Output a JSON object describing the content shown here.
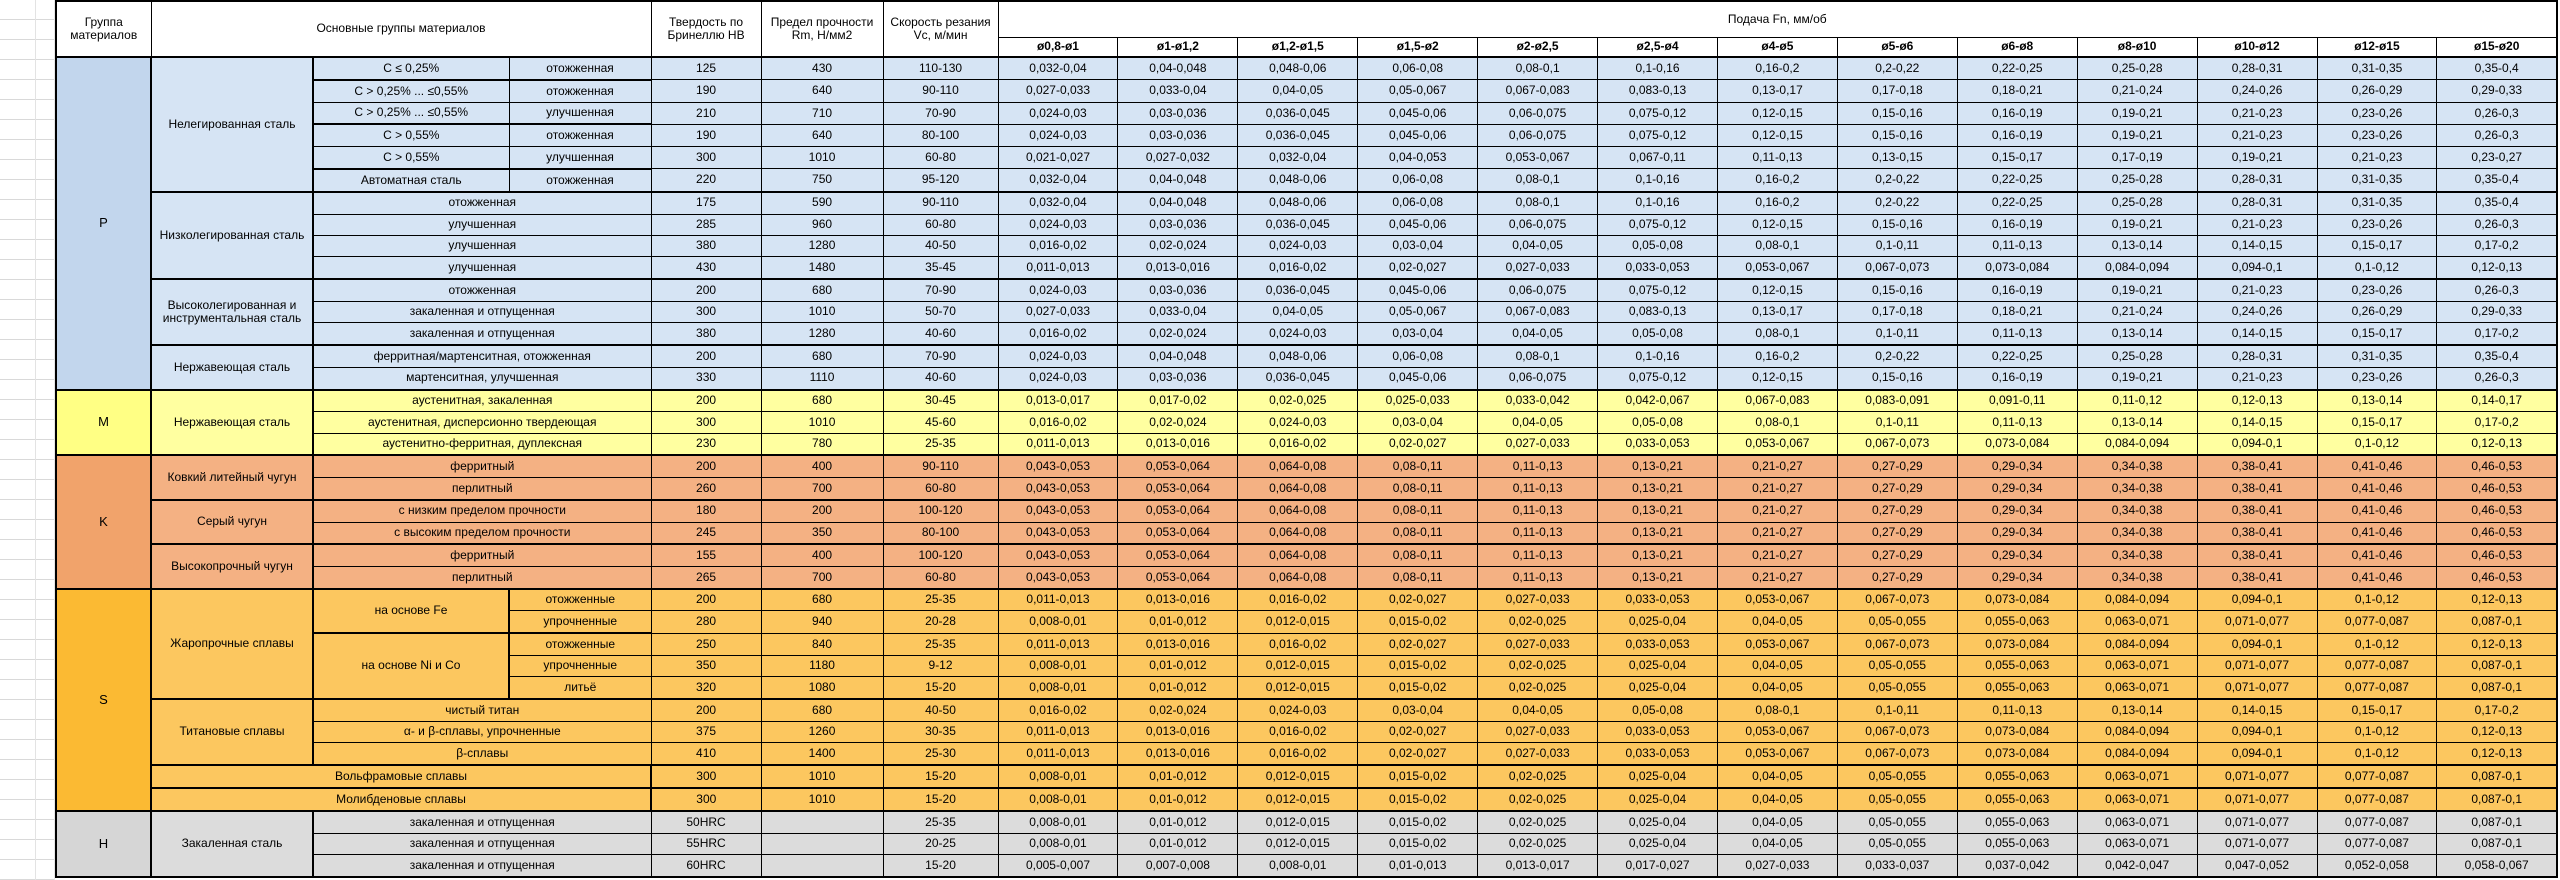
{
  "header": {
    "col_group": "Группа материалов",
    "col_main": "Основные группы материалов",
    "col_hardness": "Твердость по Бринеллю HB",
    "col_strength": "Предел прочности Rm, Н/мм2",
    "col_speed": "Скорость резания Vc, м/мин",
    "col_feed": "Подача Fn, мм/об",
    "diameters": [
      "ø0,8-ø1",
      "ø1-ø1,2",
      "ø1,2-ø1,5",
      "ø1,5-ø2",
      "ø2-ø2,5",
      "ø2,5-ø4",
      "ø4-ø5",
      "ø5-ø6",
      "ø6-ø8",
      "ø8-ø10",
      "ø10-ø12",
      "ø12-ø15",
      "ø15-ø20"
    ]
  },
  "feeds": {
    "A": [
      "0,032-0,04",
      "0,04-0,048",
      "0,048-0,06",
      "0,06-0,08",
      "0,08-0,1",
      "0,1-0,16",
      "0,16-0,2",
      "0,2-0,22",
      "0,22-0,25",
      "0,25-0,28",
      "0,28-0,31",
      "0,31-0,35",
      "0,35-0,4"
    ],
    "A2": [
      "0,024-0,03",
      "0,04-0,048",
      "0,048-0,06",
      "0,06-0,08",
      "0,08-0,1",
      "0,1-0,16",
      "0,16-0,2",
      "0,2-0,22",
      "0,22-0,25",
      "0,25-0,28",
      "0,28-0,31",
      "0,31-0,35",
      "0,35-0,4"
    ],
    "B": [
      "0,027-0,033",
      "0,033-0,04",
      "0,04-0,05",
      "0,05-0,067",
      "0,067-0,083",
      "0,083-0,13",
      "0,13-0,17",
      "0,17-0,18",
      "0,18-0,21",
      "0,21-0,24",
      "0,24-0,26",
      "0,26-0,29",
      "0,29-0,33"
    ],
    "C": [
      "0,024-0,03",
      "0,03-0,036",
      "0,036-0,045",
      "0,045-0,06",
      "0,06-0,075",
      "0,075-0,12",
      "0,12-0,15",
      "0,15-0,16",
      "0,16-0,19",
      "0,19-0,21",
      "0,21-0,23",
      "0,23-0,26",
      "0,26-0,3"
    ],
    "D": [
      "0,021-0,027",
      "0,027-0,032",
      "0,032-0,04",
      "0,04-0,053",
      "0,053-0,067",
      "0,067-0,11",
      "0,11-0,13",
      "0,13-0,15",
      "0,15-0,17",
      "0,17-0,19",
      "0,19-0,21",
      "0,21-0,23",
      "0,23-0,27"
    ],
    "E": [
      "0,016-0,02",
      "0,02-0,024",
      "0,024-0,03",
      "0,03-0,04",
      "0,04-0,05",
      "0,05-0,08",
      "0,08-0,1",
      "0,1-0,11",
      "0,11-0,13",
      "0,13-0,14",
      "0,14-0,15",
      "0,15-0,17",
      "0,17-0,2"
    ],
    "F": [
      "0,011-0,013",
      "0,013-0,016",
      "0,016-0,02",
      "0,02-0,027",
      "0,027-0,033",
      "0,033-0,053",
      "0,053-0,067",
      "0,067-0,073",
      "0,073-0,084",
      "0,084-0,094",
      "0,094-0,1",
      "0,1-0,12",
      "0,12-0,13"
    ],
    "G": [
      "0,013-0,017",
      "0,017-0,02",
      "0,02-0,025",
      "0,025-0,033",
      "0,033-0,042",
      "0,042-0,067",
      "0,067-0,083",
      "0,083-0,091",
      "0,091-0,11",
      "0,11-0,12",
      "0,12-0,13",
      "0,13-0,14",
      "0,14-0,17"
    ],
    "KD": [
      "0,043-0,053",
      "0,053-0,064",
      "0,064-0,08",
      "0,08-0,11",
      "0,11-0,13",
      "0,13-0,21",
      "0,21-0,27",
      "0,27-0,29",
      "0,29-0,34",
      "0,34-0,38",
      "0,38-0,41",
      "0,41-0,46",
      "0,46-0,53"
    ],
    "J": [
      "0,008-0,01",
      "0,01-0,012",
      "0,012-0,015",
      "0,015-0,02",
      "0,02-0,025",
      "0,025-0,04",
      "0,04-0,05",
      "0,05-0,055",
      "0,055-0,063",
      "0,063-0,071",
      "0,071-0,077",
      "0,077-0,087",
      "0,087-0,1"
    ],
    "Z": [
      "0,005-0,007",
      "0,007-0,008",
      "0,008-0,01",
      "0,01-0,013",
      "0,013-0,017",
      "0,017-0,027",
      "0,027-0,033",
      "0,033-0,037",
      "0,037-0,042",
      "0,042-0,047",
      "0,047-0,052",
      "0,052-0,058",
      "0,058-0,067"
    ]
  },
  "groups": [
    {
      "code": "P",
      "label_bg": "#c2d6ed",
      "row_bg": "#d6e4f4",
      "rows": [
        {
          "labels": [
            [
              "Нелегированная сталь",
              6,
              1
            ],
            [
              "C ≤ 0,25%",
              1,
              1
            ],
            [
              "отожженная",
              1,
              1
            ]
          ],
          "hb": "125",
          "rm": "430",
          "vc": "110-130",
          "feed": "A",
          "thick": true
        },
        {
          "labels": [
            [
              "C > 0,25% ... ≤0,55%",
              1,
              1
            ],
            [
              "отожженная",
              1,
              1
            ]
          ],
          "hb": "190",
          "rm": "640",
          "vc": "90-110",
          "feed": "B",
          "lt": true
        },
        {
          "labels": [
            [
              "C > 0,25% ... ≤0,55%",
              1,
              1
            ],
            [
              "улучшенная",
              1,
              1
            ]
          ],
          "hb": "210",
          "rm": "710",
          "vc": "70-90",
          "feed": "C"
        },
        {
          "labels": [
            [
              "C > 0,55%",
              1,
              1
            ],
            [
              "отожженная",
              1,
              1
            ]
          ],
          "hb": "190",
          "rm": "640",
          "vc": "80-100",
          "feed": "C",
          "lt": true
        },
        {
          "labels": [
            [
              "C > 0,55%",
              1,
              1
            ],
            [
              "улучшенная",
              1,
              1
            ]
          ],
          "hb": "300",
          "rm": "1010",
          "vc": "60-80",
          "feed": "D"
        },
        {
          "labels": [
            [
              "Автоматная сталь",
              1,
              1
            ],
            [
              "отожженная",
              1,
              1
            ]
          ],
          "hb": "220",
          "rm": "750",
          "vc": "95-120",
          "feed": "A",
          "lt": true
        },
        {
          "labels": [
            [
              "Низколегированная сталь",
              4,
              1
            ],
            [
              "отожженная",
              1,
              2
            ]
          ],
          "hb": "175",
          "rm": "590",
          "vc": "90-110",
          "feed": "A",
          "thick": true
        },
        {
          "labels": [
            [
              "улучшенная",
              1,
              2
            ]
          ],
          "hb": "285",
          "rm": "960",
          "vc": "60-80",
          "feed": "C"
        },
        {
          "labels": [
            [
              "улучшенная",
              1,
              2
            ]
          ],
          "hb": "380",
          "rm": "1280",
          "vc": "40-50",
          "feed": "E"
        },
        {
          "labels": [
            [
              "улучшенная",
              1,
              2
            ]
          ],
          "hb": "430",
          "rm": "1480",
          "vc": "35-45",
          "feed": "F"
        },
        {
          "labels": [
            [
              "Высоколегированная и инструментальная сталь",
              3,
              1
            ],
            [
              "отожженная",
              1,
              2
            ]
          ],
          "hb": "200",
          "rm": "680",
          "vc": "70-90",
          "feed": "C",
          "thick": true
        },
        {
          "labels": [
            [
              "закаленная и отпущенная",
              1,
              2
            ]
          ],
          "hb": "300",
          "rm": "1010",
          "vc": "50-70",
          "feed": "B"
        },
        {
          "labels": [
            [
              "закаленная и отпущенная",
              1,
              2
            ]
          ],
          "hb": "380",
          "rm": "1280",
          "vc": "40-60",
          "feed": "E"
        },
        {
          "labels": [
            [
              "Нержавеющая сталь",
              2,
              1
            ],
            [
              "ферритная/мартенситная, отожженная",
              1,
              2
            ]
          ],
          "hb": "200",
          "rm": "680",
          "vc": "70-90",
          "feed": "A2",
          "thick": true
        },
        {
          "labels": [
            [
              "мартенситная, улучшенная",
              1,
              2
            ]
          ],
          "hb": "330",
          "rm": "1110",
          "vc": "40-60",
          "feed": "C"
        }
      ]
    },
    {
      "code": "M",
      "label_bg": "#ffff84",
      "row_bg": "#ffffa0",
      "rows": [
        {
          "labels": [
            [
              "Нержавеющая сталь",
              3,
              1
            ],
            [
              "аустенитная, закаленная",
              1,
              2
            ]
          ],
          "hb": "200",
          "rm": "680",
          "vc": "30-45",
          "feed": "G",
          "thick": true
        },
        {
          "labels": [
            [
              "аустенитная, дисперсионно твердеющая",
              1,
              2
            ]
          ],
          "hb": "300",
          "rm": "1010",
          "vc": "45-60",
          "feed": "E"
        },
        {
          "labels": [
            [
              "аустенитно-ферритная, дуплексная",
              1,
              2
            ]
          ],
          "hb": "230",
          "rm": "780",
          "vc": "25-35",
          "feed": "F"
        }
      ]
    },
    {
      "code": "K",
      "label_bg": "#f1a36b",
      "row_bg": "#f4b183",
      "rows": [
        {
          "labels": [
            [
              "Ковкий литейный чугун",
              2,
              1
            ],
            [
              "ферритный",
              1,
              2
            ]
          ],
          "hb": "200",
          "rm": "400",
          "vc": "90-110",
          "feed": "KD",
          "thick": true
        },
        {
          "labels": [
            [
              "перлитный",
              1,
              2
            ]
          ],
          "hb": "260",
          "rm": "700",
          "vc": "60-80",
          "feed": "KD"
        },
        {
          "labels": [
            [
              "Серый чугун",
              2,
              1
            ],
            [
              "с низким пределом прочности",
              1,
              2
            ]
          ],
          "hb": "180",
          "rm": "200",
          "vc": "100-120",
          "feed": "KD",
          "thick": true
        },
        {
          "labels": [
            [
              "с высоким пределом прочности",
              1,
              2
            ]
          ],
          "hb": "245",
          "rm": "350",
          "vc": "80-100",
          "feed": "KD"
        },
        {
          "labels": [
            [
              "Высокопрочный чугун",
              2,
              1
            ],
            [
              "ферритный",
              1,
              2
            ]
          ],
          "hb": "155",
          "rm": "400",
          "vc": "100-120",
          "feed": "KD",
          "thick": true
        },
        {
          "labels": [
            [
              "перлитный",
              1,
              2
            ]
          ],
          "hb": "265",
          "rm": "700",
          "vc": "60-80",
          "feed": "KD"
        }
      ]
    },
    {
      "code": "S",
      "label_bg": "#fbba33",
      "row_bg": "#fcc75f",
      "rows": [
        {
          "labels": [
            [
              "Жаропрочные сплавы",
              5,
              1
            ],
            [
              "на основе Fe",
              2,
              1
            ],
            [
              "отожженные",
              1,
              1
            ]
          ],
          "hb": "200",
          "rm": "680",
          "vc": "25-35",
          "feed": "F",
          "thick": true
        },
        {
          "labels": [
            [
              "упрочненные",
              1,
              1
            ]
          ],
          "hb": "280",
          "rm": "940",
          "vc": "20-28",
          "feed": "J"
        },
        {
          "labels": [
            [
              "на основе Ni и Co",
              3,
              1
            ],
            [
              "отожженные",
              1,
              1
            ]
          ],
          "hb": "250",
          "rm": "840",
          "vc": "25-35",
          "feed": "F",
          "lt": true
        },
        {
          "labels": [
            [
              "упрочненные",
              1,
              1
            ]
          ],
          "hb": "350",
          "rm": "1180",
          "vc": "9-12",
          "feed": "J"
        },
        {
          "labels": [
            [
              "литьё",
              1,
              1
            ]
          ],
          "hb": "320",
          "rm": "1080",
          "vc": "15-20",
          "feed": "J"
        },
        {
          "labels": [
            [
              "Титановые сплавы",
              3,
              1
            ],
            [
              "чистый титан",
              1,
              2
            ]
          ],
          "hb": "200",
          "rm": "680",
          "vc": "40-50",
          "feed": "E",
          "thick": true
        },
        {
          "labels": [
            [
              "α- и β-сплавы, упрочненные",
              1,
              2
            ]
          ],
          "hb": "375",
          "rm": "1260",
          "vc": "30-35",
          "feed": "F"
        },
        {
          "labels": [
            [
              "β-сплавы",
              1,
              2
            ]
          ],
          "hb": "410",
          "rm": "1400",
          "vc": "25-30",
          "feed": "F"
        },
        {
          "labels": [
            [
              "Вольфрамовые сплавы",
              1,
              3
            ]
          ],
          "hb": "300",
          "rm": "1010",
          "vc": "15-20",
          "feed": "J",
          "thick": true
        },
        {
          "labels": [
            [
              "Молибденовые сплавы",
              1,
              3
            ]
          ],
          "hb": "300",
          "rm": "1010",
          "vc": "15-20",
          "feed": "J",
          "thick": true
        }
      ]
    },
    {
      "code": "H",
      "label_bg": "#d6d6d6",
      "row_bg": "#dcdcdc",
      "rows": [
        {
          "labels": [
            [
              "Закаленная сталь",
              3,
              1
            ],
            [
              "закаленная и отпущенная",
              1,
              2
            ]
          ],
          "hb": "50HRC",
          "rm": "",
          "vc": "25-35",
          "feed": "J",
          "thick": true
        },
        {
          "labels": [
            [
              "закаленная и отпущенная",
              1,
              2
            ]
          ],
          "hb": "55HRC",
          "rm": "",
          "vc": "20-25",
          "feed": "J"
        },
        {
          "labels": [
            [
              "закаленная и отпущенная",
              1,
              2
            ]
          ],
          "hb": "60HRC",
          "rm": "",
          "vc": "15-20",
          "feed": "Z"
        }
      ]
    }
  ]
}
